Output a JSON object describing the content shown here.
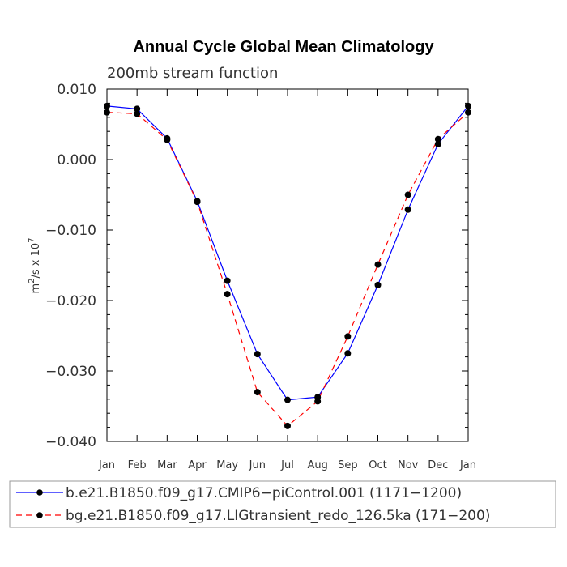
{
  "chart_data": {
    "type": "line",
    "title": "Annual Cycle Global Mean Climatology",
    "subtitle": "200mb stream function",
    "ylabel": {
      "base": "m",
      "sup1": "2",
      "mid": "/s x 10",
      "sup2": "7"
    },
    "xlabel": "",
    "categories": [
      "Jan",
      "Feb",
      "Mar",
      "Apr",
      "May",
      "Jun",
      "Jul",
      "Aug",
      "Sep",
      "Oct",
      "Nov",
      "Dec",
      "Jan"
    ],
    "ylim": [
      -0.04,
      0.01
    ],
    "yticks": [
      0.01,
      0.0,
      -0.01,
      -0.02,
      -0.03,
      -0.04
    ],
    "ytick_labels": [
      "0.010",
      "0.000",
      "−0.010",
      "−0.020",
      "−0.030",
      "−0.040"
    ],
    "series": [
      {
        "name": "b.e21.B1850.f09_g17.CMIP6−piControl.001 (1171−1200)",
        "color": "#0000ff",
        "dash": "solid",
        "values": [
          0.0076,
          0.0072,
          0.003,
          -0.0059,
          -0.0172,
          -0.0276,
          -0.0341,
          -0.0337,
          -0.0275,
          -0.0178,
          -0.0071,
          0.0022,
          0.0076
        ]
      },
      {
        "name": "bg.e21.B1850.f09_g17.LIGtransient_redo_126.5ka (171−200)",
        "color": "#ff0000",
        "dash": "dashed",
        "values": [
          0.0067,
          0.0065,
          0.0028,
          -0.006,
          -0.0191,
          -0.033,
          -0.0378,
          -0.0343,
          -0.0251,
          -0.0149,
          -0.005,
          0.0029,
          0.0067
        ]
      }
    ],
    "legend_position": "bottom",
    "grid": false
  }
}
